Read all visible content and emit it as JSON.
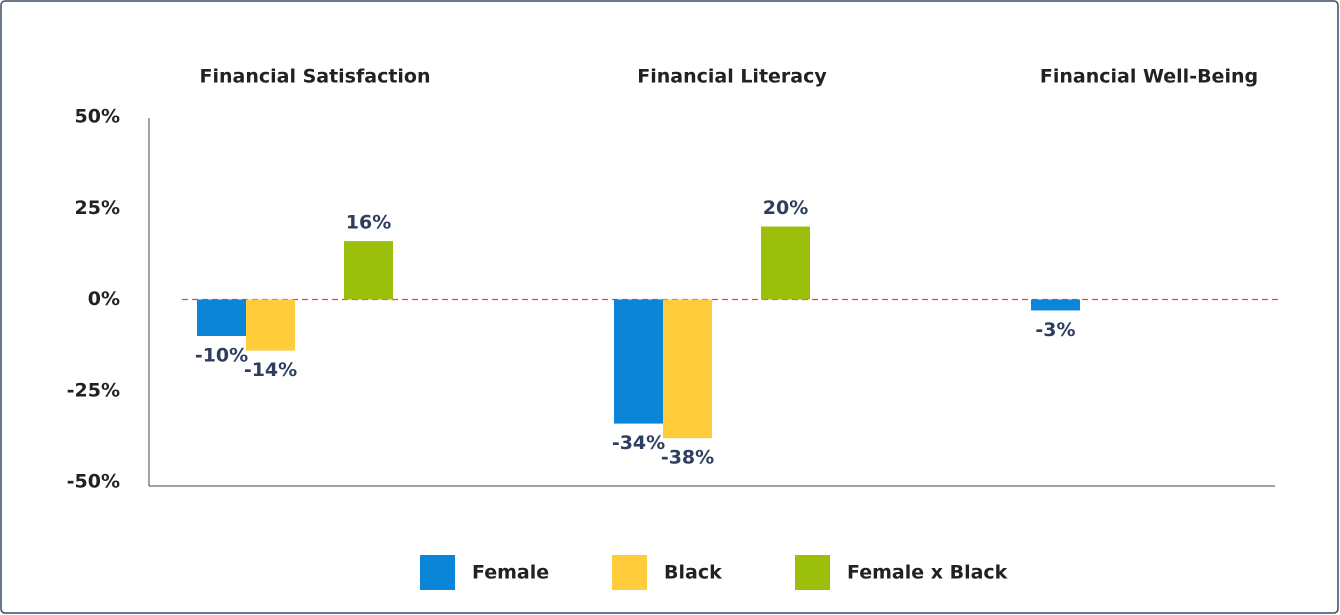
{
  "chart_data": {
    "type": "bar",
    "categories": [
      "Financial Satisfaction",
      "Financial Literacy",
      "Financial Well-Being"
    ],
    "series": [
      {
        "name": "Female",
        "color": "#0a85d8",
        "values": [
          -10,
          -34,
          -3
        ],
        "value_labels": [
          "-10%",
          "-34%",
          "-3%"
        ]
      },
      {
        "name": "Black",
        "color": "#ffcd3c",
        "values": [
          -14,
          -38,
          null
        ],
        "value_labels": [
          "-14%",
          "-38%",
          null
        ]
      },
      {
        "name": "Female x Black",
        "color": "#9cbf0b",
        "values": [
          16,
          20,
          null
        ],
        "value_labels": [
          "16%",
          "20%",
          null
        ]
      }
    ],
    "ylim": [
      -50,
      50
    ],
    "yticks": [
      {
        "value": 50,
        "label": "50%"
      },
      {
        "value": 25,
        "label": "25%"
      },
      {
        "value": 0,
        "label": "0%"
      },
      {
        "value": -25,
        "label": "-25%"
      },
      {
        "value": -50,
        "label": "-50%"
      }
    ],
    "legend": "bottom"
  }
}
